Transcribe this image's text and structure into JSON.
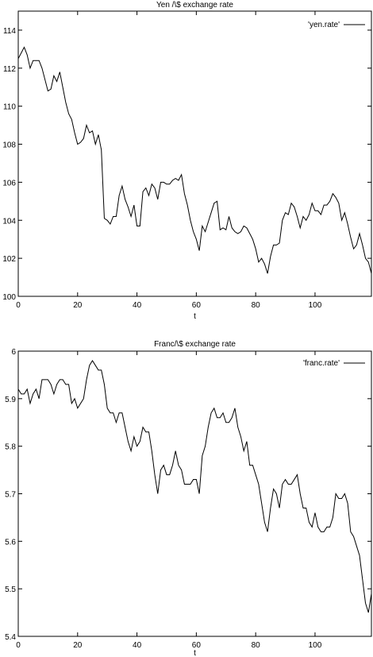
{
  "chart_data": [
    {
      "type": "line",
      "title": "Yen /\\$ exchange rate",
      "xlabel": "t",
      "ylabel": "",
      "xlim": [
        0,
        119
      ],
      "ylim": [
        100,
        115
      ],
      "xticks": [
        0,
        20,
        40,
        60,
        80,
        100
      ],
      "yticks": [
        100,
        102,
        104,
        106,
        108,
        110,
        112,
        114
      ],
      "xtick_labels": [
        "0",
        "20",
        "40",
        "60",
        "80",
        "100"
      ],
      "ytick_labels": [
        "100",
        "102",
        "104",
        "106",
        "108",
        "110",
        "112",
        "114"
      ],
      "grid": false,
      "legend_position": "top-right",
      "series": [
        {
          "name": "'yen.rate'",
          "color": "#000000",
          "values": [
            112.5,
            112.8,
            113.1,
            112.7,
            112.0,
            112.4,
            112.4,
            112.4,
            112.0,
            111.4,
            110.8,
            110.9,
            111.6,
            111.3,
            111.8,
            111.0,
            110.2,
            109.6,
            109.3,
            108.6,
            108.0,
            108.1,
            108.3,
            109.0,
            108.6,
            108.7,
            108.0,
            108.5,
            107.7,
            104.1,
            104.0,
            103.8,
            104.2,
            104.2,
            105.3,
            105.8,
            105.1,
            104.7,
            104.2,
            104.8,
            103.7,
            103.7,
            105.5,
            105.7,
            105.3,
            105.9,
            105.7,
            105.1,
            106.0,
            106.0,
            105.9,
            105.9,
            106.1,
            106.2,
            106.1,
            106.4,
            105.4,
            104.8,
            104.0,
            103.4,
            103.0,
            102.4,
            103.7,
            103.4,
            103.9,
            104.4,
            104.9,
            105.0,
            103.5,
            103.6,
            103.5,
            104.2,
            103.6,
            103.4,
            103.3,
            103.4,
            103.7,
            103.6,
            103.3,
            103.0,
            102.5,
            101.8,
            102.0,
            101.7,
            101.2,
            102.1,
            102.7,
            102.7,
            102.8,
            104.0,
            104.4,
            104.3,
            104.9,
            104.7,
            104.2,
            103.6,
            104.2,
            104.0,
            104.3,
            104.9,
            104.5,
            104.5,
            104.3,
            104.8,
            104.8,
            105.0,
            105.4,
            105.2,
            104.9,
            104.0,
            104.4,
            103.8,
            103.1,
            102.5,
            102.7,
            103.3,
            102.7,
            102.0,
            101.8,
            101.2
          ]
        }
      ]
    },
    {
      "type": "line",
      "title": "Franc/\\$ exchange rate",
      "xlabel": "t",
      "ylabel": "",
      "xlim": [
        0,
        119
      ],
      "ylim": [
        5.4,
        6.0
      ],
      "xticks": [
        0,
        20,
        40,
        60,
        80,
        100
      ],
      "yticks": [
        5.4,
        5.5,
        5.6,
        5.7,
        5.8,
        5.9,
        6.0
      ],
      "xtick_labels": [
        "0",
        "20",
        "40",
        "60",
        "80",
        "100"
      ],
      "ytick_labels": [
        "5.4",
        "5.5",
        "5.6",
        "5.7",
        "5.8",
        "5.9",
        "6"
      ],
      "grid": false,
      "legend_position": "top-right",
      "series": [
        {
          "name": "'franc.rate'",
          "color": "#000000",
          "values": [
            5.92,
            5.91,
            5.91,
            5.92,
            5.89,
            5.91,
            5.92,
            5.9,
            5.94,
            5.94,
            5.94,
            5.93,
            5.91,
            5.93,
            5.94,
            5.94,
            5.93,
            5.93,
            5.89,
            5.9,
            5.88,
            5.89,
            5.9,
            5.94,
            5.97,
            5.98,
            5.97,
            5.96,
            5.96,
            5.93,
            5.88,
            5.87,
            5.87,
            5.85,
            5.87,
            5.87,
            5.84,
            5.81,
            5.79,
            5.82,
            5.8,
            5.81,
            5.84,
            5.83,
            5.83,
            5.79,
            5.74,
            5.7,
            5.75,
            5.76,
            5.74,
            5.74,
            5.76,
            5.79,
            5.76,
            5.75,
            5.72,
            5.72,
            5.72,
            5.73,
            5.73,
            5.7,
            5.78,
            5.8,
            5.84,
            5.87,
            5.88,
            5.86,
            5.86,
            5.87,
            5.85,
            5.85,
            5.86,
            5.88,
            5.84,
            5.82,
            5.79,
            5.81,
            5.76,
            5.76,
            5.74,
            5.72,
            5.68,
            5.64,
            5.62,
            5.67,
            5.71,
            5.7,
            5.67,
            5.72,
            5.73,
            5.72,
            5.72,
            5.73,
            5.74,
            5.7,
            5.67,
            5.67,
            5.64,
            5.63,
            5.66,
            5.63,
            5.62,
            5.62,
            5.63,
            5.63,
            5.65,
            5.7,
            5.69,
            5.69,
            5.7,
            5.68,
            5.62,
            5.61,
            5.59,
            5.57,
            5.52,
            5.47,
            5.45,
            5.49
          ]
        }
      ]
    }
  ]
}
